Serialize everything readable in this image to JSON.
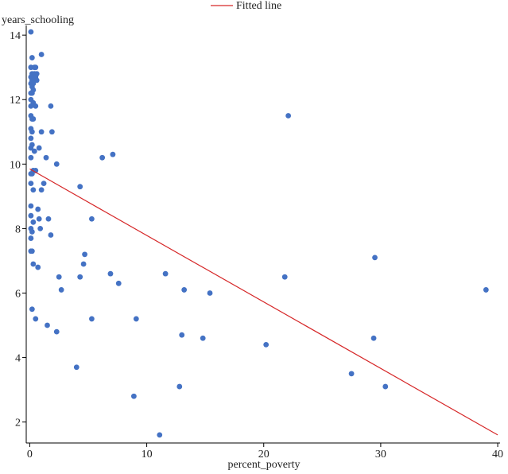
{
  "chart_data": {
    "type": "scatter",
    "xlabel": "percent_poverty",
    "ylabel": "years_schooling",
    "xlim": [
      -0.3,
      40.2
    ],
    "ylim": [
      1.35,
      14.3
    ],
    "xticks": [
      0,
      10,
      20,
      30,
      40
    ],
    "yticks": [
      2,
      4,
      6,
      8,
      10,
      12,
      14
    ],
    "grid": false,
    "legend": {
      "position": "top-center",
      "entries": [
        {
          "label": "Fitted line",
          "color": "#d62728",
          "kind": "line"
        }
      ]
    },
    "colors": {
      "points": "#4472c4",
      "fit": "#d62728"
    },
    "fitted_line": {
      "x": [
        0,
        40
      ],
      "y": [
        9.85,
        1.6
      ]
    },
    "points": [
      [
        0.1,
        14.1
      ],
      [
        0.2,
        13.3
      ],
      [
        1.0,
        13.4
      ],
      [
        0.1,
        13.0
      ],
      [
        0.4,
        13.0
      ],
      [
        0.5,
        13.0
      ],
      [
        0.2,
        12.8
      ],
      [
        0.4,
        12.8
      ],
      [
        0.6,
        12.8
      ],
      [
        0.1,
        12.7
      ],
      [
        0.3,
        12.7
      ],
      [
        0.5,
        12.7
      ],
      [
        0.2,
        12.6
      ],
      [
        0.4,
        12.6
      ],
      [
        0.6,
        12.6
      ],
      [
        0.1,
        12.5
      ],
      [
        0.3,
        12.5
      ],
      [
        0.2,
        12.4
      ],
      [
        0.3,
        12.3
      ],
      [
        0.1,
        12.2
      ],
      [
        0.2,
        12.2
      ],
      [
        0.1,
        12.0
      ],
      [
        0.3,
        11.9
      ],
      [
        0.1,
        11.8
      ],
      [
        0.5,
        11.8
      ],
      [
        1.8,
        11.8
      ],
      [
        0.1,
        11.5
      ],
      [
        0.2,
        11.4
      ],
      [
        0.3,
        11.4
      ],
      [
        0.1,
        11.1
      ],
      [
        0.2,
        11.0
      ],
      [
        1.0,
        11.0
      ],
      [
        1.9,
        11.0
      ],
      [
        0.1,
        10.8
      ],
      [
        0.2,
        10.6
      ],
      [
        0.1,
        10.5
      ],
      [
        0.4,
        10.4
      ],
      [
        0.8,
        10.5
      ],
      [
        0.1,
        10.2
      ],
      [
        1.4,
        10.2
      ],
      [
        2.3,
        10.0
      ],
      [
        0.3,
        9.8
      ],
      [
        0.5,
        9.8
      ],
      [
        0.1,
        9.7
      ],
      [
        0.2,
        9.7
      ],
      [
        0.1,
        9.4
      ],
      [
        1.2,
        9.4
      ],
      [
        0.3,
        9.2
      ],
      [
        1.0,
        9.2
      ],
      [
        4.3,
        9.3
      ],
      [
        0.1,
        8.7
      ],
      [
        0.7,
        8.6
      ],
      [
        0.1,
        8.4
      ],
      [
        0.8,
        8.3
      ],
      [
        1.6,
        8.3
      ],
      [
        5.3,
        8.3
      ],
      [
        0.3,
        8.2
      ],
      [
        0.1,
        8.0
      ],
      [
        0.9,
        8.0
      ],
      [
        0.2,
        7.9
      ],
      [
        1.8,
        7.8
      ],
      [
        0.1,
        7.7
      ],
      [
        0.1,
        7.3
      ],
      [
        0.2,
        7.3
      ],
      [
        4.7,
        7.2
      ],
      [
        0.3,
        6.9
      ],
      [
        4.6,
        6.9
      ],
      [
        0.7,
        6.8
      ],
      [
        2.5,
        6.5
      ],
      [
        4.3,
        6.5
      ],
      [
        6.9,
        6.6
      ],
      [
        11.6,
        6.6
      ],
      [
        7.6,
        6.3
      ],
      [
        2.7,
        6.1
      ],
      [
        13.2,
        6.1
      ],
      [
        15.4,
        6.0
      ],
      [
        0.2,
        5.5
      ],
      [
        0.5,
        5.2
      ],
      [
        5.3,
        5.2
      ],
      [
        9.1,
        5.2
      ],
      [
        1.5,
        5.0
      ],
      [
        2.3,
        4.8
      ],
      [
        13.0,
        4.7
      ],
      [
        14.8,
        4.6
      ],
      [
        4.0,
        3.7
      ],
      [
        12.8,
        3.1
      ],
      [
        8.9,
        2.8
      ],
      [
        11.1,
        1.6
      ],
      [
        6.2,
        10.2
      ],
      [
        7.1,
        10.3
      ],
      [
        22.1,
        11.5
      ],
      [
        21.8,
        6.5
      ],
      [
        29.5,
        7.1
      ],
      [
        29.4,
        4.6
      ],
      [
        20.2,
        4.4
      ],
      [
        27.5,
        3.5
      ],
      [
        30.4,
        3.1
      ],
      [
        39.0,
        6.1
      ]
    ]
  }
}
